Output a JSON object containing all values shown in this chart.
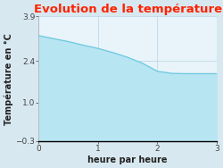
{
  "title": "Evolution de la température",
  "xlabel": "heure par heure",
  "ylabel": "Température en °C",
  "x": [
    0,
    0.25,
    0.5,
    0.75,
    1.0,
    1.25,
    1.5,
    1.75,
    2.0,
    2.25,
    2.5,
    2.75,
    3.0
  ],
  "y": [
    3.25,
    3.15,
    3.05,
    2.93,
    2.82,
    2.68,
    2.52,
    2.32,
    2.05,
    1.98,
    1.97,
    1.97,
    1.97
  ],
  "ylim": [
    -0.3,
    3.9
  ],
  "xlim": [
    0,
    3
  ],
  "yticks": [
    -0.3,
    1.0,
    2.4,
    3.9
  ],
  "xticks": [
    0,
    1,
    2,
    3
  ],
  "line_color": "#6cc8e0",
  "fill_color": "#b8e5f2",
  "bg_color": "#d8e8f0",
  "plot_bg_color": "#e8f4fa",
  "title_color": "#ff2200",
  "grid_color": "#c0d8e8",
  "title_fontsize": 9.5,
  "label_fontsize": 7,
  "tick_fontsize": 6.5
}
